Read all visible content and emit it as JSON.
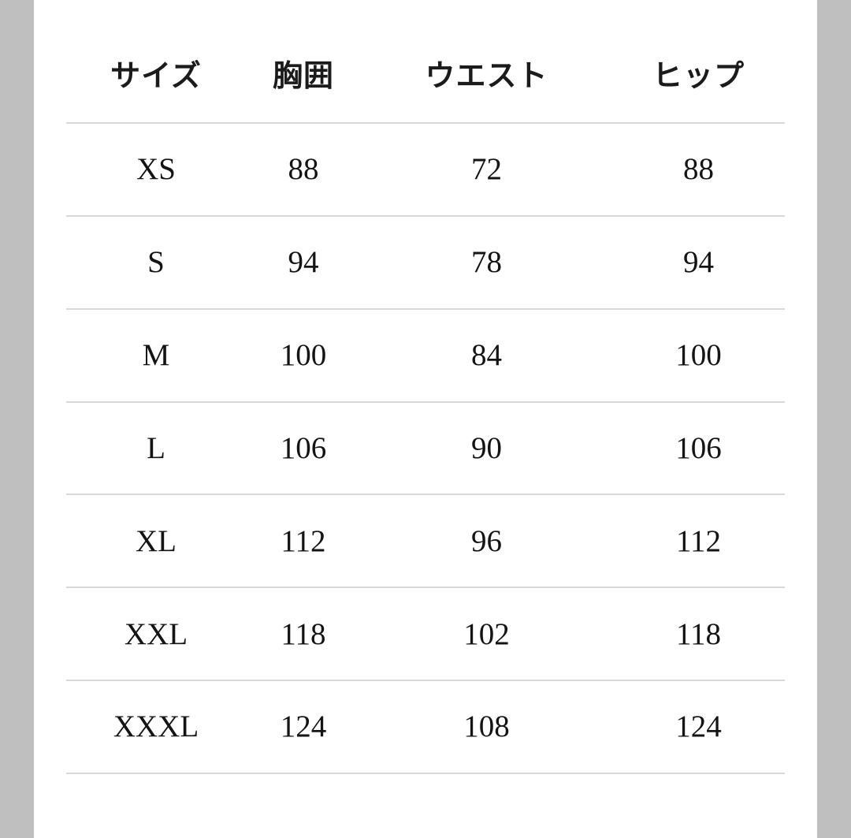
{
  "page": {
    "background_color": "#ffffff",
    "gutter_color": "#bfbfbf",
    "separator_color": "#d8d8d8",
    "text_color": "#141414"
  },
  "size_chart": {
    "headers": [
      "サイズ",
      "胸囲",
      "ウエスト",
      "ヒップ"
    ],
    "rows": [
      [
        "XS",
        "88",
        "72",
        "88"
      ],
      [
        "S",
        "94",
        "78",
        "94"
      ],
      [
        "M",
        "100",
        "84",
        "100"
      ],
      [
        "L",
        "106",
        "90",
        "106"
      ],
      [
        "XL",
        "112",
        "96",
        "112"
      ],
      [
        "XXL",
        "118",
        "102",
        "118"
      ],
      [
        "XXXL",
        "124",
        "108",
        "124"
      ]
    ]
  }
}
